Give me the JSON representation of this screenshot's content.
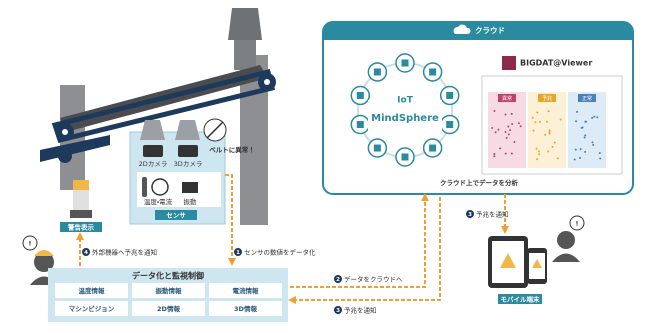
{
  "cloud": {
    "title": "クラウド",
    "platform": {
      "iot": "IoT",
      "name": "MindSphere"
    },
    "viewer": {
      "name": "BIGDAT@Viewer",
      "zones": [
        "異常",
        "予兆",
        "正常"
      ]
    },
    "caption": "クラウド上でデータを分析"
  },
  "factory": {
    "cameras": [
      "2Dカメラ",
      "3Dカメラ"
    ],
    "alert": "ベルトに異常！",
    "sensors": [
      "温度・電流",
      "振動"
    ],
    "sensor_label": "センサ",
    "warning_light": "警告表示"
  },
  "monitor": {
    "title": "データ化と監視制御",
    "cells": [
      [
        "温度情報",
        "振動情報",
        "電流情報"
      ],
      [
        "マシンビジョン",
        "2D情報",
        "3D情報"
      ]
    ]
  },
  "mobile": "モバイル端末",
  "steps": [
    {
      "number": 1,
      "label": "センサの数値をデータ化"
    },
    {
      "number": 2,
      "label": "データをクラウドへ"
    },
    {
      "number": 3,
      "label": "予兆を通知"
    },
    {
      "number": 3,
      "label": "予兆を通知"
    },
    {
      "number": 4,
      "label": "外部機器へ予兆を通知"
    }
  ]
}
